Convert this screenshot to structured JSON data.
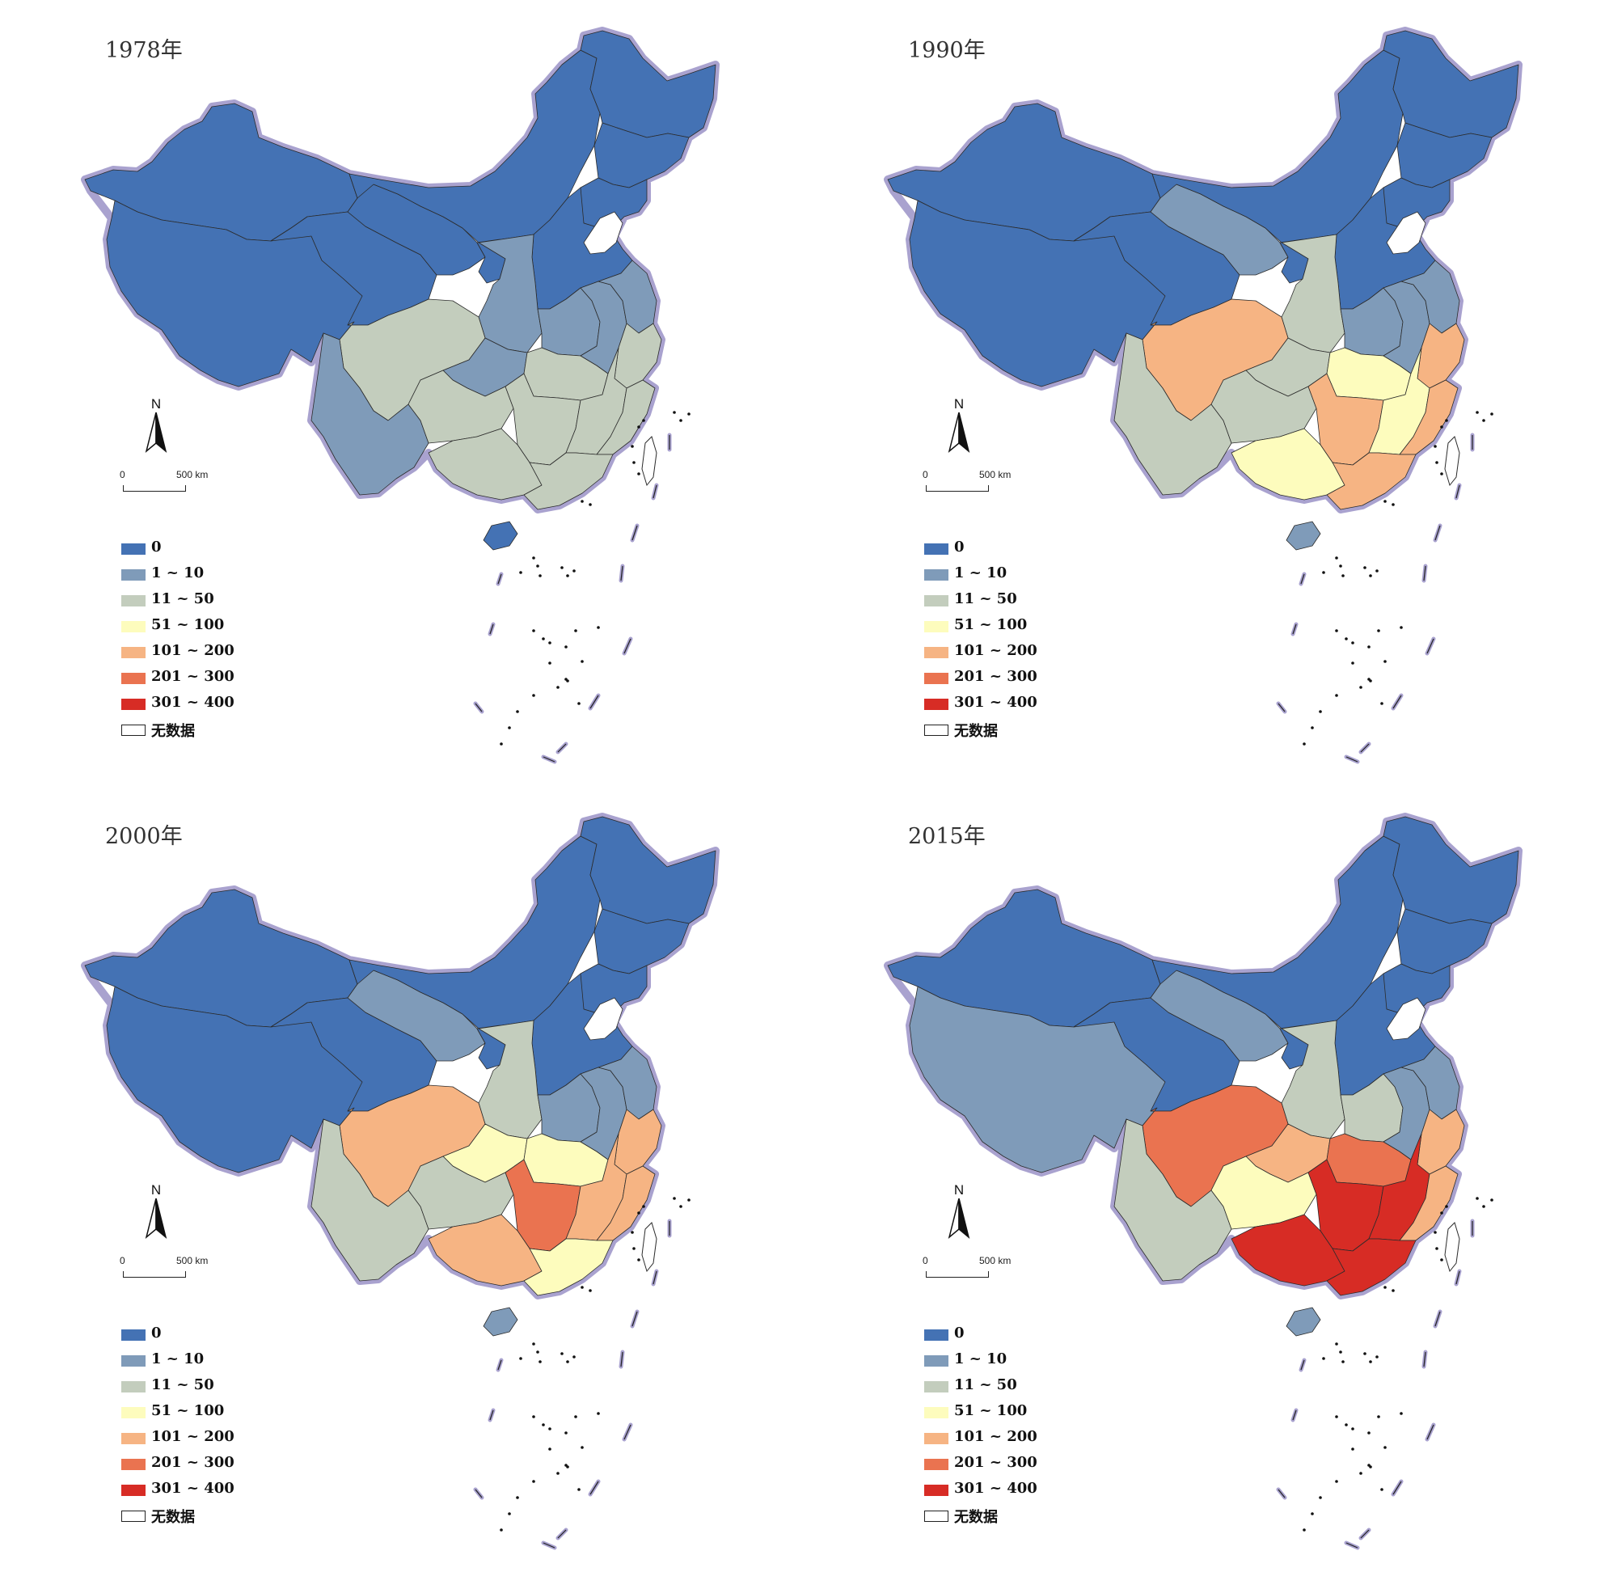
{
  "figure": {
    "panels": [
      {
        "title": "1978年"
      },
      {
        "title": "1990年"
      },
      {
        "title": "2000年"
      },
      {
        "title": "2015年"
      }
    ]
  },
  "map_elements": {
    "north_label": "N",
    "scale_zero": "0",
    "scale_label": "500 km"
  },
  "legend": {
    "items": [
      {
        "label": "0",
        "color": "#4472b4"
      },
      {
        "label": "1 ~ 10",
        "color": "#7f9bb9"
      },
      {
        "label": "11 ~ 50",
        "color": "#c3cdbd"
      },
      {
        "label": "51 ~ 100",
        "color": "#fdfcbd"
      },
      {
        "label": "101 ~ 200",
        "color": "#f6b483"
      },
      {
        "label": "201 ~ 300",
        "color": "#ea7350"
      },
      {
        "label": "301 ~ 400",
        "color": "#d72c25"
      },
      {
        "label": "无数据",
        "color": "#ffffff"
      }
    ]
  },
  "colors": {
    "c0": "#4472b4",
    "c1": "#7f9bb9",
    "c2": "#c3cdbd",
    "c3": "#fdfcbd",
    "c4": "#f6b483",
    "c5": "#ea7350",
    "c6": "#d72c25",
    "halo": "#a9a2cf",
    "border": "#2b2b2b"
  },
  "regions_by_year": [
    {
      "xinjiang": 0,
      "tibet": 0,
      "qinghai": 0,
      "gansu": 0,
      "neimenggu": 0,
      "heilongjiang": 0,
      "jilin": 0,
      "liaoning": 0,
      "north": 0,
      "shaanxi": 1,
      "ningxia": 0,
      "sichuan": 2,
      "chongqing": 1,
      "yunnan": 1,
      "guizhou": 2,
      "hubei": 2,
      "henan": 1,
      "hunan": 2,
      "jiangxi": 2,
      "anhui": 1,
      "jiangsu": 1,
      "zhejiang": 2,
      "fujian": 2,
      "guangdong": 2,
      "guangxi": 2,
      "hainan": 0
    },
    {
      "xinjiang": 0,
      "tibet": 0,
      "qinghai": 0,
      "gansu": 1,
      "neimenggu": 0,
      "heilongjiang": 0,
      "jilin": 0,
      "liaoning": 0,
      "north": 0,
      "shaanxi": 2,
      "ningxia": 0,
      "sichuan": 4,
      "chongqing": 2,
      "yunnan": 2,
      "guizhou": 2,
      "hubei": 3,
      "henan": 1,
      "hunan": 4,
      "jiangxi": 3,
      "anhui": 1,
      "jiangsu": 1,
      "zhejiang": 4,
      "fujian": 4,
      "guangdong": 4,
      "guangxi": 3,
      "hainan": 1
    },
    {
      "xinjiang": 0,
      "tibet": 0,
      "qinghai": 0,
      "gansu": 1,
      "neimenggu": 0,
      "heilongjiang": 0,
      "jilin": 0,
      "liaoning": 0,
      "north": 0,
      "shaanxi": 2,
      "ningxia": 0,
      "sichuan": 4,
      "chongqing": 3,
      "yunnan": 2,
      "guizhou": 2,
      "hubei": 3,
      "henan": 1,
      "hunan": 5,
      "jiangxi": 4,
      "anhui": 1,
      "jiangsu": 1,
      "zhejiang": 4,
      "fujian": 4,
      "guangdong": 3,
      "guangxi": 4,
      "hainan": 1
    },
    {
      "xinjiang": 0,
      "tibet": 1,
      "qinghai": 0,
      "gansu": 1,
      "neimenggu": 0,
      "heilongjiang": 0,
      "jilin": 0,
      "liaoning": 0,
      "north": 0,
      "shaanxi": 2,
      "ningxia": 0,
      "sichuan": 5,
      "chongqing": 4,
      "yunnan": 2,
      "guizhou": 3,
      "hubei": 5,
      "henan": 2,
      "hunan": 6,
      "jiangxi": 6,
      "anhui": 1,
      "jiangsu": 1,
      "zhejiang": 4,
      "fujian": 4,
      "guangdong": 6,
      "guangxi": 6,
      "hainan": 1
    }
  ]
}
